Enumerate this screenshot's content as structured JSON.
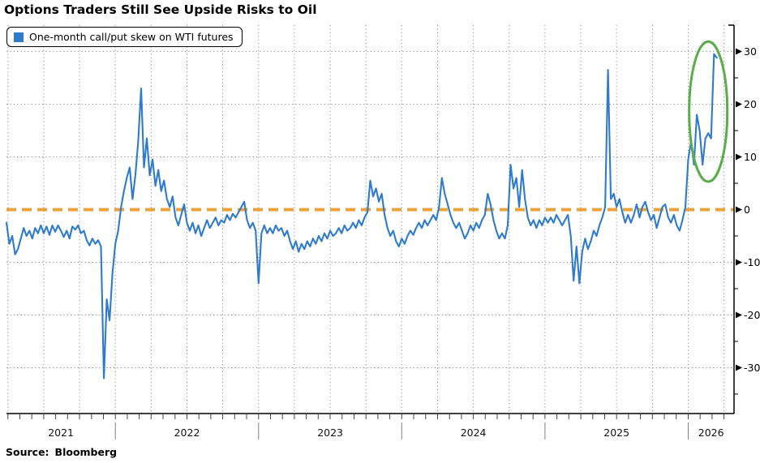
{
  "title": "Options Traders Still See Upside Risks to Oil",
  "legend": {
    "label": "One-month call/put skew on WTI futures",
    "swatch_color": "#2e7bce"
  },
  "source": {
    "prefix": "Source:",
    "name": "Bloomberg"
  },
  "colors": {
    "line": "#2e7bce",
    "zero_line": "#e8a33c",
    "annotation": "#5bad4c",
    "grid": "#909090",
    "axis": "#000000",
    "tick": "#444444",
    "year_divider": "#808080",
    "text": "#000000",
    "background": "#ffffff"
  },
  "chart_data": {
    "type": "line",
    "title": "Options Traders Still See Upside Risks to Oil",
    "xlabel": "",
    "ylabel": "",
    "xlim": [
      2021.24,
      2026.32
    ],
    "ylim": [
      -38.7,
      35.0
    ],
    "y_ticks": [
      30,
      20,
      10,
      0,
      -10,
      -20,
      -30
    ],
    "y_minor_ticks": [
      25,
      15,
      5,
      -5,
      -15,
      -25,
      -35
    ],
    "y_axis_side": "right",
    "x_year_labels": [
      "2021",
      "2022",
      "2023",
      "2024",
      "2025",
      "2026"
    ],
    "x_year_boundaries": [
      2022,
      2023,
      2024,
      2025,
      2026
    ],
    "x_grid_interval_years": 0.25,
    "x_minor_tick_interval_years": 0.08333333,
    "grid": true,
    "zero_reference_line": 0,
    "legend_position": "top-left",
    "annotation_ellipse": {
      "center_x_year": 2026.14,
      "center_y_value": 18.6,
      "radius_x_years": 0.133,
      "radius_y_values": 13.3
    },
    "series": [
      {
        "name": "One-month call/put skew on WTI futures",
        "x_start": 2021.24,
        "x_step": 0.02,
        "values": [
          -2.5,
          -6.5,
          -5,
          -8.5,
          -7.5,
          -5.5,
          -3.5,
          -5,
          -4,
          -5.5,
          -3.5,
          -4.5,
          -3,
          -4.5,
          -3.2,
          -4.8,
          -3,
          -4.2,
          -3,
          -4,
          -5.2,
          -4,
          -5.5,
          -3.2,
          -3.8,
          -3,
          -4.5,
          -4,
          -5.8,
          -6.8,
          -5.5,
          -6.5,
          -5.8,
          -7,
          -32,
          -17,
          -21,
          -12,
          -6.5,
          -4,
          0.5,
          3.5,
          6,
          8,
          2,
          6.5,
          13,
          23,
          8,
          13.5,
          6.5,
          9.5,
          4.5,
          7.5,
          3.5,
          5.5,
          2,
          0.5,
          2.5,
          -1.5,
          -3,
          -1,
          1,
          -2.5,
          -4,
          -2.5,
          -4.5,
          -3,
          -5,
          -3.5,
          -2,
          -3.5,
          -2.5,
          -1.5,
          -3,
          -2,
          -2.5,
          -1,
          -2,
          -0.8,
          -1.5,
          -0.5,
          0.5,
          1.5,
          -2,
          -3.5,
          -2.5,
          -4,
          -14,
          -4.5,
          -3,
          -4.5,
          -3.5,
          -4.5,
          -3,
          -4,
          -3.5,
          -5,
          -4,
          -6,
          -7.5,
          -6,
          -8,
          -6.5,
          -7.5,
          -6,
          -7,
          -5.5,
          -6.5,
          -5,
          -6,
          -4.5,
          -5.5,
          -4,
          -5,
          -4.5,
          -3.5,
          -4.5,
          -3,
          -4,
          -3.5,
          -2.5,
          -3.5,
          -2,
          -3,
          -1.5,
          -0.5,
          5.5,
          2.5,
          4,
          1.5,
          3,
          -1,
          -3.5,
          -5,
          -4,
          -6,
          -7,
          -5.5,
          -6.5,
          -5,
          -4,
          -4.8,
          -3.5,
          -2.5,
          -3.5,
          -2,
          -3,
          -2,
          -1,
          -2,
          0.5,
          6,
          3,
          1,
          -1,
          -2.5,
          -3.5,
          -2.5,
          -4,
          -5.5,
          -4.5,
          -3,
          -4,
          -2.5,
          -3.5,
          -2,
          -1,
          3,
          1,
          -2,
          -4,
          -5.5,
          -4.5,
          -5.5,
          -3,
          8.5,
          4,
          6,
          0.5,
          7.5,
          2,
          -1.5,
          -3,
          -2,
          -3.5,
          -2,
          -3,
          -1.5,
          -2.5,
          -1.5,
          -2.5,
          -1,
          -2,
          -3,
          -2,
          -1,
          -5,
          -13.5,
          -7,
          -14,
          -8,
          -5.5,
          -7.5,
          -6,
          -4,
          -5,
          -3,
          -1.5,
          0.5,
          26.5,
          2,
          3,
          0.5,
          2,
          -0.5,
          -2.5,
          -1,
          -2.5,
          -1,
          1,
          -1.5,
          0.5,
          1.5,
          -0.5,
          -2,
          -1,
          -3.5,
          -1.5,
          0.5,
          1,
          -1.5,
          -2.5,
          -1,
          -3,
          -4,
          -2,
          0.5,
          9.5,
          13,
          8.5,
          18,
          15,
          8.5,
          13.5,
          14.5,
          13.5,
          29.5,
          28.8
        ]
      }
    ]
  }
}
